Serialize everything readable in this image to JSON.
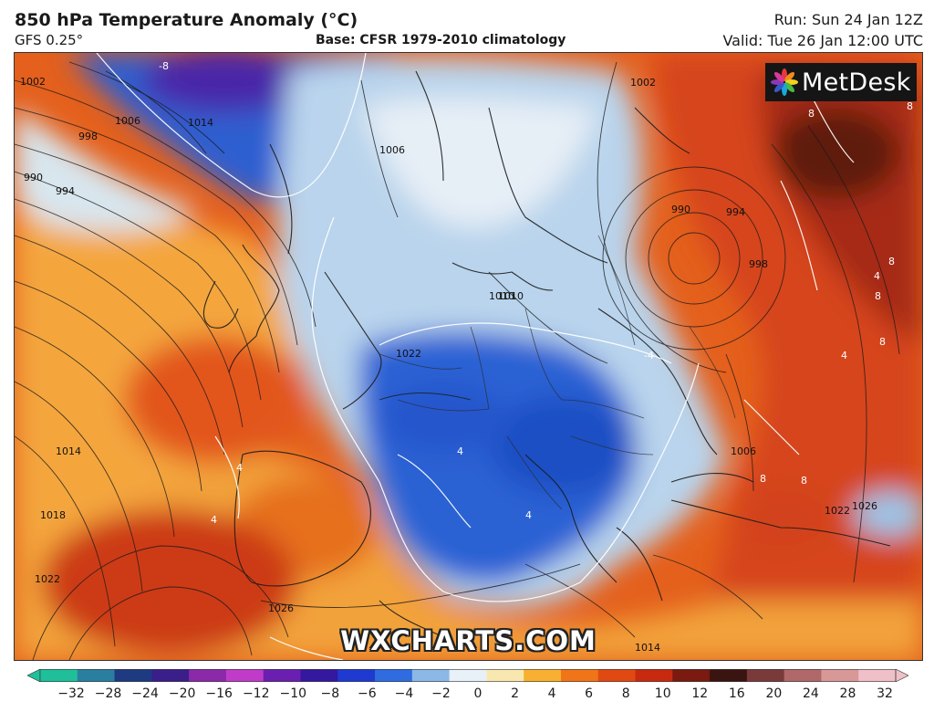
{
  "header": {
    "title": "850 hPa Temperature Anomaly (°C)",
    "model": "GFS 0.25°",
    "base": "Base: CFSR 1979-2010 climatology",
    "run": "Run: Sun 24 Jan 12Z",
    "valid": "Valid: Tue 26 Jan 12:00 UTC"
  },
  "logo": {
    "text": "MetDesk"
  },
  "watermark": "WXCHARTS.COM",
  "isobar_labels": [
    "1002",
    "1010",
    "1014",
    "1006",
    "998",
    "990",
    "994",
    "1006",
    "1002",
    "990",
    "994",
    "998",
    "1010",
    "1022",
    "1014",
    "1018",
    "1022",
    "1026",
    "1006",
    "1022",
    "1026",
    "1014"
  ],
  "anomaly_labels": [
    "-8",
    "-4",
    "4",
    "8",
    "8",
    "8",
    "8",
    "4",
    "4",
    "4",
    "4",
    "8",
    "8",
    "8",
    "4"
  ],
  "colorbar": {
    "ticks": [
      "−32",
      "−28",
      "−24",
      "−20",
      "−16",
      "−12",
      "−10",
      "−8",
      "−6",
      "−4",
      "−2",
      "0",
      "2",
      "4",
      "6",
      "8",
      "10",
      "12",
      "16",
      "20",
      "24",
      "28",
      "32"
    ],
    "colors": [
      "#1fbf9a",
      "#2a7fa0",
      "#1e3a80",
      "#3a1e8a",
      "#8a2aa8",
      "#c03cc8",
      "#6a1fb0",
      "#3418a0",
      "#1e3ad0",
      "#2e6ce0",
      "#8cb8e8",
      "#e8f0f8",
      "#f8e8b0",
      "#f8b030",
      "#f07418",
      "#e04a12",
      "#c82a10",
      "#7a1a10",
      "#3a1410",
      "#7a3a3a",
      "#b06868",
      "#d89898",
      "#f0c0c8"
    ]
  },
  "colors": {
    "cold_core": "#1a4fc8",
    "cold": "#3a7ad8",
    "cool": "#a8cdea",
    "warm": "#f2a23a",
    "hot": "#e45818",
    "very_hot": "#c42a10",
    "extreme": "#5a1410"
  }
}
